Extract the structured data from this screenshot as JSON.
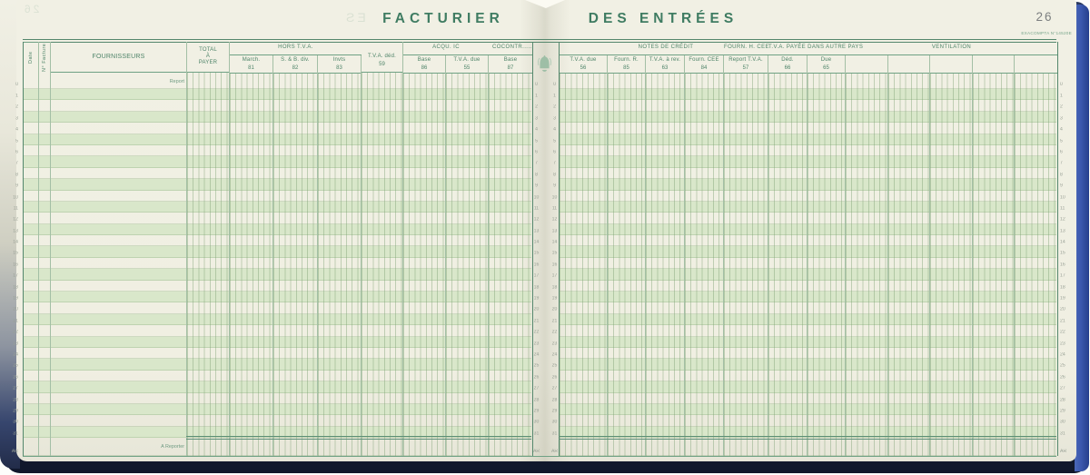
{
  "book_title": {
    "left": "FACTURIER",
    "right": "DES ENTRÉES"
  },
  "page_number": "26",
  "imprint": "EXACOMPTA N°14520E",
  "ghosts": {
    "title_fragment": "ES",
    "page_number": "26"
  },
  "labels": {
    "report": "Report",
    "a_reporter": "A Reporter"
  },
  "colors": {
    "ink_green": "#4e8469",
    "rule_green": "#6fa184",
    "stripe_green": "#d9e7ca",
    "paper_cream": "#f0efe2",
    "cover_blue": "#3a57ad",
    "cover_dark_navy": "#1b2440",
    "page_number_gray": "#7c7f80"
  },
  "left_page": {
    "columns": [
      {
        "label": "Date",
        "w": 17,
        "rotate": true,
        "ruled": false
      },
      {
        "label": "N° Facture",
        "w": 13,
        "rotate": true,
        "ruled": false
      },
      {
        "label": "FOURNISSEURS",
        "w": 150,
        "wide": true,
        "ruled": false
      },
      {
        "label": "TOTAL|À|PAYER",
        "w": 47
      },
      {
        "group": "HORS T.V.A.",
        "cols": [
          {
            "label": "March.",
            "code": "81",
            "w": 48
          },
          {
            "label": "S. & B. div.",
            "code": "82",
            "w": 49
          },
          {
            "label": "Invts",
            "code": "83",
            "w": 48
          }
        ]
      },
      {
        "label": "T.V.A. déd.",
        "code": "59",
        "w": 46,
        "pad": true
      },
      {
        "group": "ACQU. IC",
        "cols": [
          {
            "label": "Base",
            "code": "86",
            "w": 47
          },
          {
            "label": "T.V.A. due",
            "code": "55",
            "w": 47
          }
        ]
      },
      {
        "group": "COCONTR.....",
        "align": "left",
        "cols": [
          {
            "label": "Base",
            "code": "87",
            "w": 48
          }
        ]
      }
    ]
  },
  "right_page": {
    "columns": [
      {
        "group": "",
        "cols": [
          {
            "label": "T.V.A. due",
            "code": "56",
            "w": 53
          }
        ]
      },
      {
        "group": "NOTES DE CRÉDIT",
        "cols": [
          {
            "label": "Fourn. R.",
            "code": "85",
            "w": 42
          },
          {
            "label": "T.V.A. à rev.",
            "code": "63",
            "w": 43
          },
          {
            "label": "Fourn. CEE",
            "code": "84",
            "w": 43
          }
        ]
      },
      {
        "group": "FOURN. H. CEE",
        "cols": [
          {
            "label": "Report T.V.A.",
            "code": "57",
            "w": 49
          }
        ]
      },
      {
        "group": "T.V.A. PAYÉE DANS AUTRE PAYS",
        "cols": [
          {
            "label": "Déd.",
            "code": "66",
            "w": 43
          },
          {
            "label": "Due",
            "code": "65",
            "w": 42
          }
        ]
      },
      {
        "group": "VENTILATION",
        "cols": [
          {
            "label": "",
            "code": "",
            "w": 47
          },
          {
            "label": "",
            "code": "",
            "w": 46
          },
          {
            "label": "",
            "code": "",
            "w": 47
          },
          {
            "label": "",
            "code": "",
            "w": 46
          },
          {
            "label": "",
            "code": "",
            "w": 47
          }
        ]
      }
    ]
  },
  "row_numbers": [
    "0",
    "1",
    "2",
    "3",
    "4",
    "5",
    "6",
    "7",
    "8",
    "9",
    "10",
    "11",
    "12",
    "13",
    "14",
    "15",
    "16",
    "17",
    "18",
    "19",
    "20",
    "21",
    "22",
    "23",
    "24",
    "25",
    "26",
    "27",
    "28",
    "29",
    "30",
    "31",
    "AR"
  ]
}
